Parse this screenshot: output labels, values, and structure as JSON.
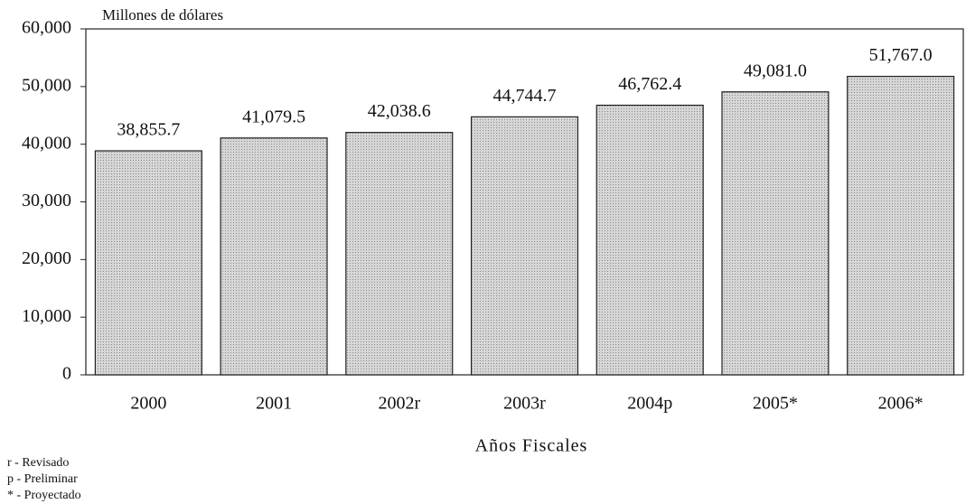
{
  "chart_data": {
    "type": "bar",
    "y_unit_label": "Millones de dólares",
    "x_label": "Años Fiscales",
    "categories": [
      "2000",
      "2001",
      "2002r",
      "2003r",
      "2004p",
      "2005*",
      "2006*"
    ],
    "values": [
      38855.7,
      41079.5,
      42038.6,
      44744.7,
      46762.4,
      49081.0,
      51767.0
    ],
    "value_labels": [
      "38,855.7",
      "41,079.5",
      "42,038.6",
      "44,744.7",
      "46,762.4",
      "49,081.0",
      "51,767.0"
    ],
    "color": "#cdcdcd",
    "ylim": [
      0,
      60000
    ],
    "yticks": [
      0,
      {
        "value": 10000,
        "label": "10,000"
      },
      {
        "value": 20000,
        "label": "20,000"
      },
      {
        "value": 30000,
        "label": "30,000"
      },
      {
        "value": 40000,
        "label": "40,000"
      },
      {
        "value": 50000,
        "label": "50,000"
      },
      {
        "value": 60000,
        "label": "60,000"
      }
    ],
    "notes": [
      "r - Revisado",
      "p - Preliminar",
      "* - Proyectado"
    ]
  }
}
